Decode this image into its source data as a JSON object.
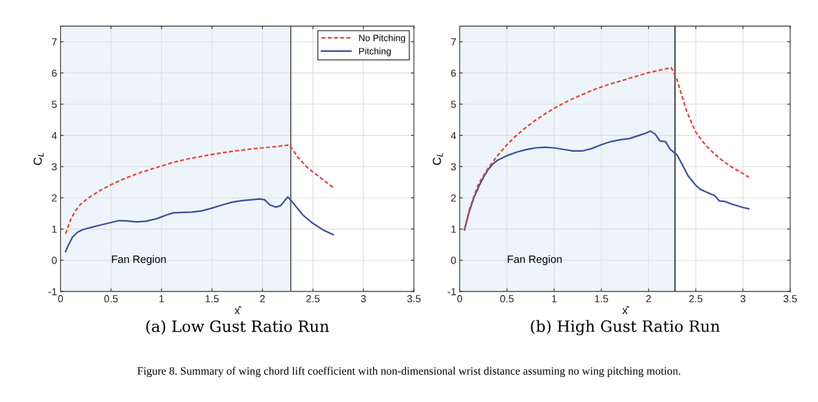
{
  "chart_data": [
    {
      "type": "line",
      "title": "(a) Low Gust Ratio Run",
      "xlabel": "x̂",
      "ylabel": "C$_{L}$",
      "xlim": [
        0,
        3.5
      ],
      "ylim": [
        -1,
        7.5
      ],
      "xticks": [
        0,
        0.5,
        1,
        1.5,
        2,
        2.5,
        3,
        3.5
      ],
      "yticks": [
        -1,
        0,
        1,
        2,
        3,
        4,
        5,
        6,
        7
      ],
      "grid": true,
      "legend": "top right",
      "bands": [
        {
          "axis": "x",
          "from": 0,
          "to": 2.28,
          "label": "Fan Region",
          "color": "#eef5fa"
        }
      ],
      "ref_lines": [
        {
          "axis": "x",
          "value": 2.28,
          "color": "#555555",
          "line_style": "solid"
        }
      ],
      "series": [
        {
          "name": "No Pitching",
          "color": "#e8413c",
          "line_style": "dashed",
          "x": [
            0.05,
            0.1,
            0.15,
            0.2,
            0.3,
            0.4,
            0.5,
            0.6,
            0.7,
            0.8,
            0.9,
            1.0,
            1.1,
            1.2,
            1.3,
            1.4,
            1.5,
            1.6,
            1.7,
            1.8,
            1.9,
            2.0,
            2.1,
            2.2,
            2.27,
            2.35,
            2.45,
            2.55,
            2.7
          ],
          "values": [
            0.85,
            1.3,
            1.6,
            1.8,
            2.05,
            2.25,
            2.42,
            2.57,
            2.7,
            2.82,
            2.92,
            3.02,
            3.12,
            3.2,
            3.27,
            3.33,
            3.39,
            3.44,
            3.49,
            3.53,
            3.57,
            3.6,
            3.63,
            3.67,
            3.69,
            3.3,
            2.95,
            2.7,
            2.33
          ]
        },
        {
          "name": "Pitching",
          "color": "#3a4ea0",
          "line_style": "solid",
          "x": [
            0.05,
            0.08,
            0.12,
            0.17,
            0.22,
            0.3,
            0.4,
            0.5,
            0.58,
            0.65,
            0.75,
            0.85,
            0.95,
            1.05,
            1.12,
            1.2,
            1.3,
            1.4,
            1.5,
            1.6,
            1.7,
            1.8,
            1.9,
            1.97,
            2.02,
            2.07,
            2.13,
            2.18,
            2.25,
            2.3,
            2.4,
            2.5,
            2.6,
            2.7
          ],
          "values": [
            0.28,
            0.5,
            0.75,
            0.9,
            0.98,
            1.05,
            1.13,
            1.21,
            1.27,
            1.26,
            1.23,
            1.25,
            1.33,
            1.45,
            1.52,
            1.53,
            1.54,
            1.58,
            1.67,
            1.77,
            1.86,
            1.91,
            1.94,
            1.96,
            1.94,
            1.78,
            1.7,
            1.75,
            2.03,
            1.85,
            1.45,
            1.18,
            0.97,
            0.82
          ]
        }
      ]
    },
    {
      "type": "line",
      "title": "(b) High Gust Ratio Run",
      "xlabel": "x̂",
      "ylabel": "C$_{L}$",
      "xlim": [
        0,
        3.5
      ],
      "ylim": [
        -1,
        7.5
      ],
      "xticks": [
        0,
        0.5,
        1,
        1.5,
        2,
        2.5,
        3,
        3.5
      ],
      "yticks": [
        -1,
        0,
        1,
        2,
        3,
        4,
        5,
        6,
        7
      ],
      "grid": true,
      "annotations": [
        "Figure 8. Summary of wing chord lift coefficient with non-dimensional wrist distance assuming no wing pitching motion."
      ],
      "bands": [
        {
          "axis": "x",
          "from": 0,
          "to": 2.28,
          "label": "Fan Region",
          "color": "#eef5fa"
        }
      ],
      "ref_lines": [
        {
          "axis": "x",
          "value": 2.28,
          "color": "#222222",
          "line_style": "solid"
        }
      ],
      "series": [
        {
          "color": "#e8413c",
          "line_style": "dashed",
          "x": [
            0.05,
            0.1,
            0.15,
            0.2,
            0.3,
            0.4,
            0.5,
            0.6,
            0.7,
            0.8,
            0.9,
            1.0,
            1.1,
            1.2,
            1.3,
            1.4,
            1.5,
            1.6,
            1.7,
            1.8,
            1.9,
            2.0,
            2.1,
            2.24,
            2.3,
            2.4,
            2.5,
            2.6,
            2.7,
            2.8,
            2.9,
            3.0,
            3.06
          ],
          "values": [
            1.0,
            1.6,
            2.05,
            2.45,
            2.95,
            3.35,
            3.7,
            4.0,
            4.25,
            4.48,
            4.68,
            4.87,
            5.03,
            5.18,
            5.31,
            5.44,
            5.55,
            5.65,
            5.74,
            5.83,
            5.92,
            6.01,
            6.08,
            6.17,
            5.8,
            4.8,
            4.1,
            3.7,
            3.4,
            3.15,
            2.95,
            2.78,
            2.66
          ]
        },
        {
          "color": "#3a4ea0",
          "line_style": "solid",
          "x": [
            0.05,
            0.1,
            0.15,
            0.2,
            0.25,
            0.3,
            0.35,
            0.4,
            0.5,
            0.6,
            0.7,
            0.8,
            0.9,
            1.0,
            1.1,
            1.2,
            1.3,
            1.4,
            1.5,
            1.6,
            1.7,
            1.8,
            1.9,
            1.97,
            2.02,
            2.07,
            2.12,
            2.18,
            2.23,
            2.3,
            2.35,
            2.42,
            2.5,
            2.55,
            2.6,
            2.7,
            2.75,
            2.8,
            2.9,
            3.0,
            3.06
          ],
          "values": [
            0.97,
            1.55,
            2.0,
            2.35,
            2.65,
            2.9,
            3.08,
            3.2,
            3.35,
            3.46,
            3.54,
            3.6,
            3.62,
            3.6,
            3.55,
            3.5,
            3.5,
            3.58,
            3.7,
            3.8,
            3.86,
            3.9,
            4.0,
            4.07,
            4.14,
            4.04,
            3.82,
            3.8,
            3.55,
            3.38,
            3.1,
            2.7,
            2.4,
            2.27,
            2.2,
            2.07,
            1.9,
            1.89,
            1.78,
            1.69,
            1.65
          ]
        }
      ]
    }
  ]
}
